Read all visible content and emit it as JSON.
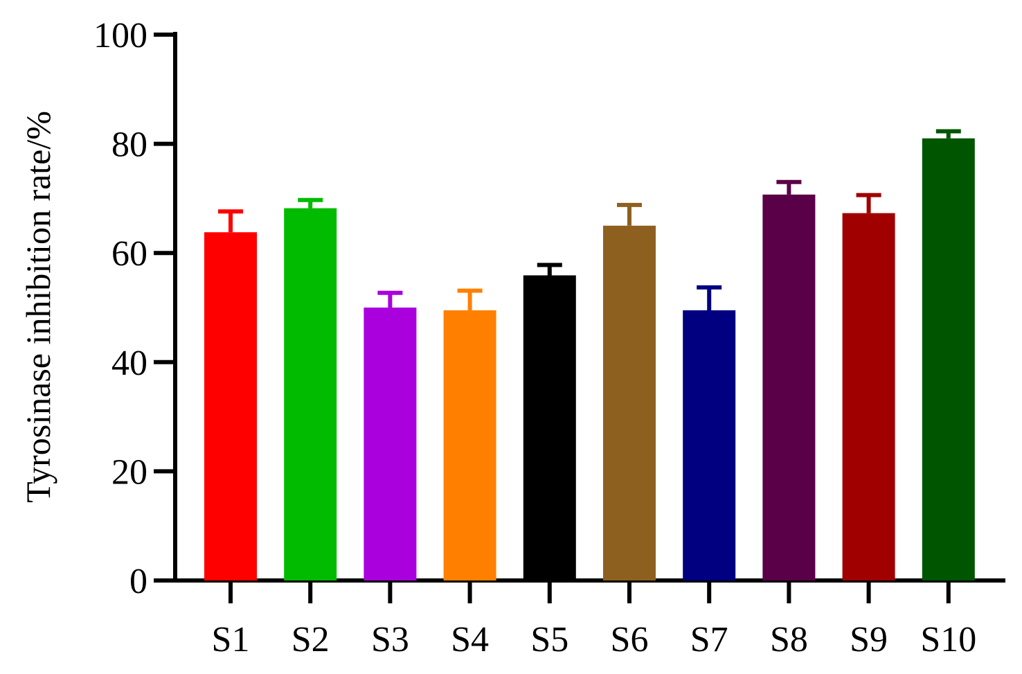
{
  "chart_data": {
    "type": "bar",
    "title": "",
    "xlabel": "",
    "ylabel": "Tyrosinase inhibition rate/%",
    "ylim": [
      0,
      100
    ],
    "yticks": [
      0,
      20,
      40,
      60,
      80,
      100
    ],
    "grid": false,
    "legend": "none",
    "categories": [
      "S1",
      "S2",
      "S3",
      "S4",
      "S5",
      "S6",
      "S7",
      "S8",
      "S9",
      "S10"
    ],
    "values": [
      63.8,
      68.2,
      50.0,
      49.5,
      55.9,
      65.0,
      49.5,
      70.7,
      67.3,
      81.0
    ],
    "errors": [
      3.8,
      1.5,
      2.7,
      3.6,
      1.9,
      3.8,
      4.2,
      2.3,
      3.3,
      1.3
    ],
    "colors": [
      "#ff0000",
      "#00bb00",
      "#aa00dd",
      "#ff8000",
      "#000000",
      "#8e6020",
      "#000080",
      "#5a0048",
      "#a00000",
      "#005500"
    ]
  }
}
